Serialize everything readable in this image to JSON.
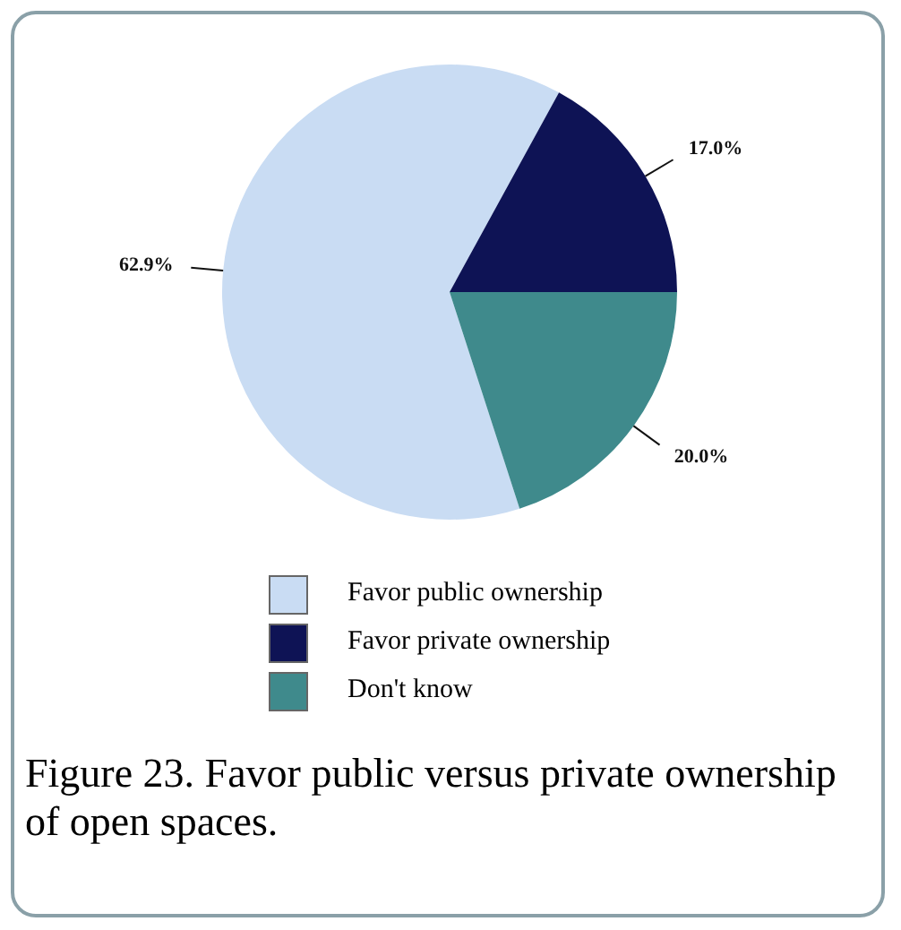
{
  "chart_data": {
    "type": "pie",
    "title": "Figure 23. Favor public versus private ownership of open spaces.",
    "categories": [
      "Favor public ownership",
      "Favor private ownership",
      "Don't know"
    ],
    "values": [
      62.9,
      17.0,
      20.0
    ],
    "colors": [
      "#c9dcf3",
      "#0e1355",
      "#3f8a8c"
    ],
    "value_labels": [
      "62.9%",
      "17.0%",
      "20.0%"
    ],
    "legend": "bottom"
  }
}
